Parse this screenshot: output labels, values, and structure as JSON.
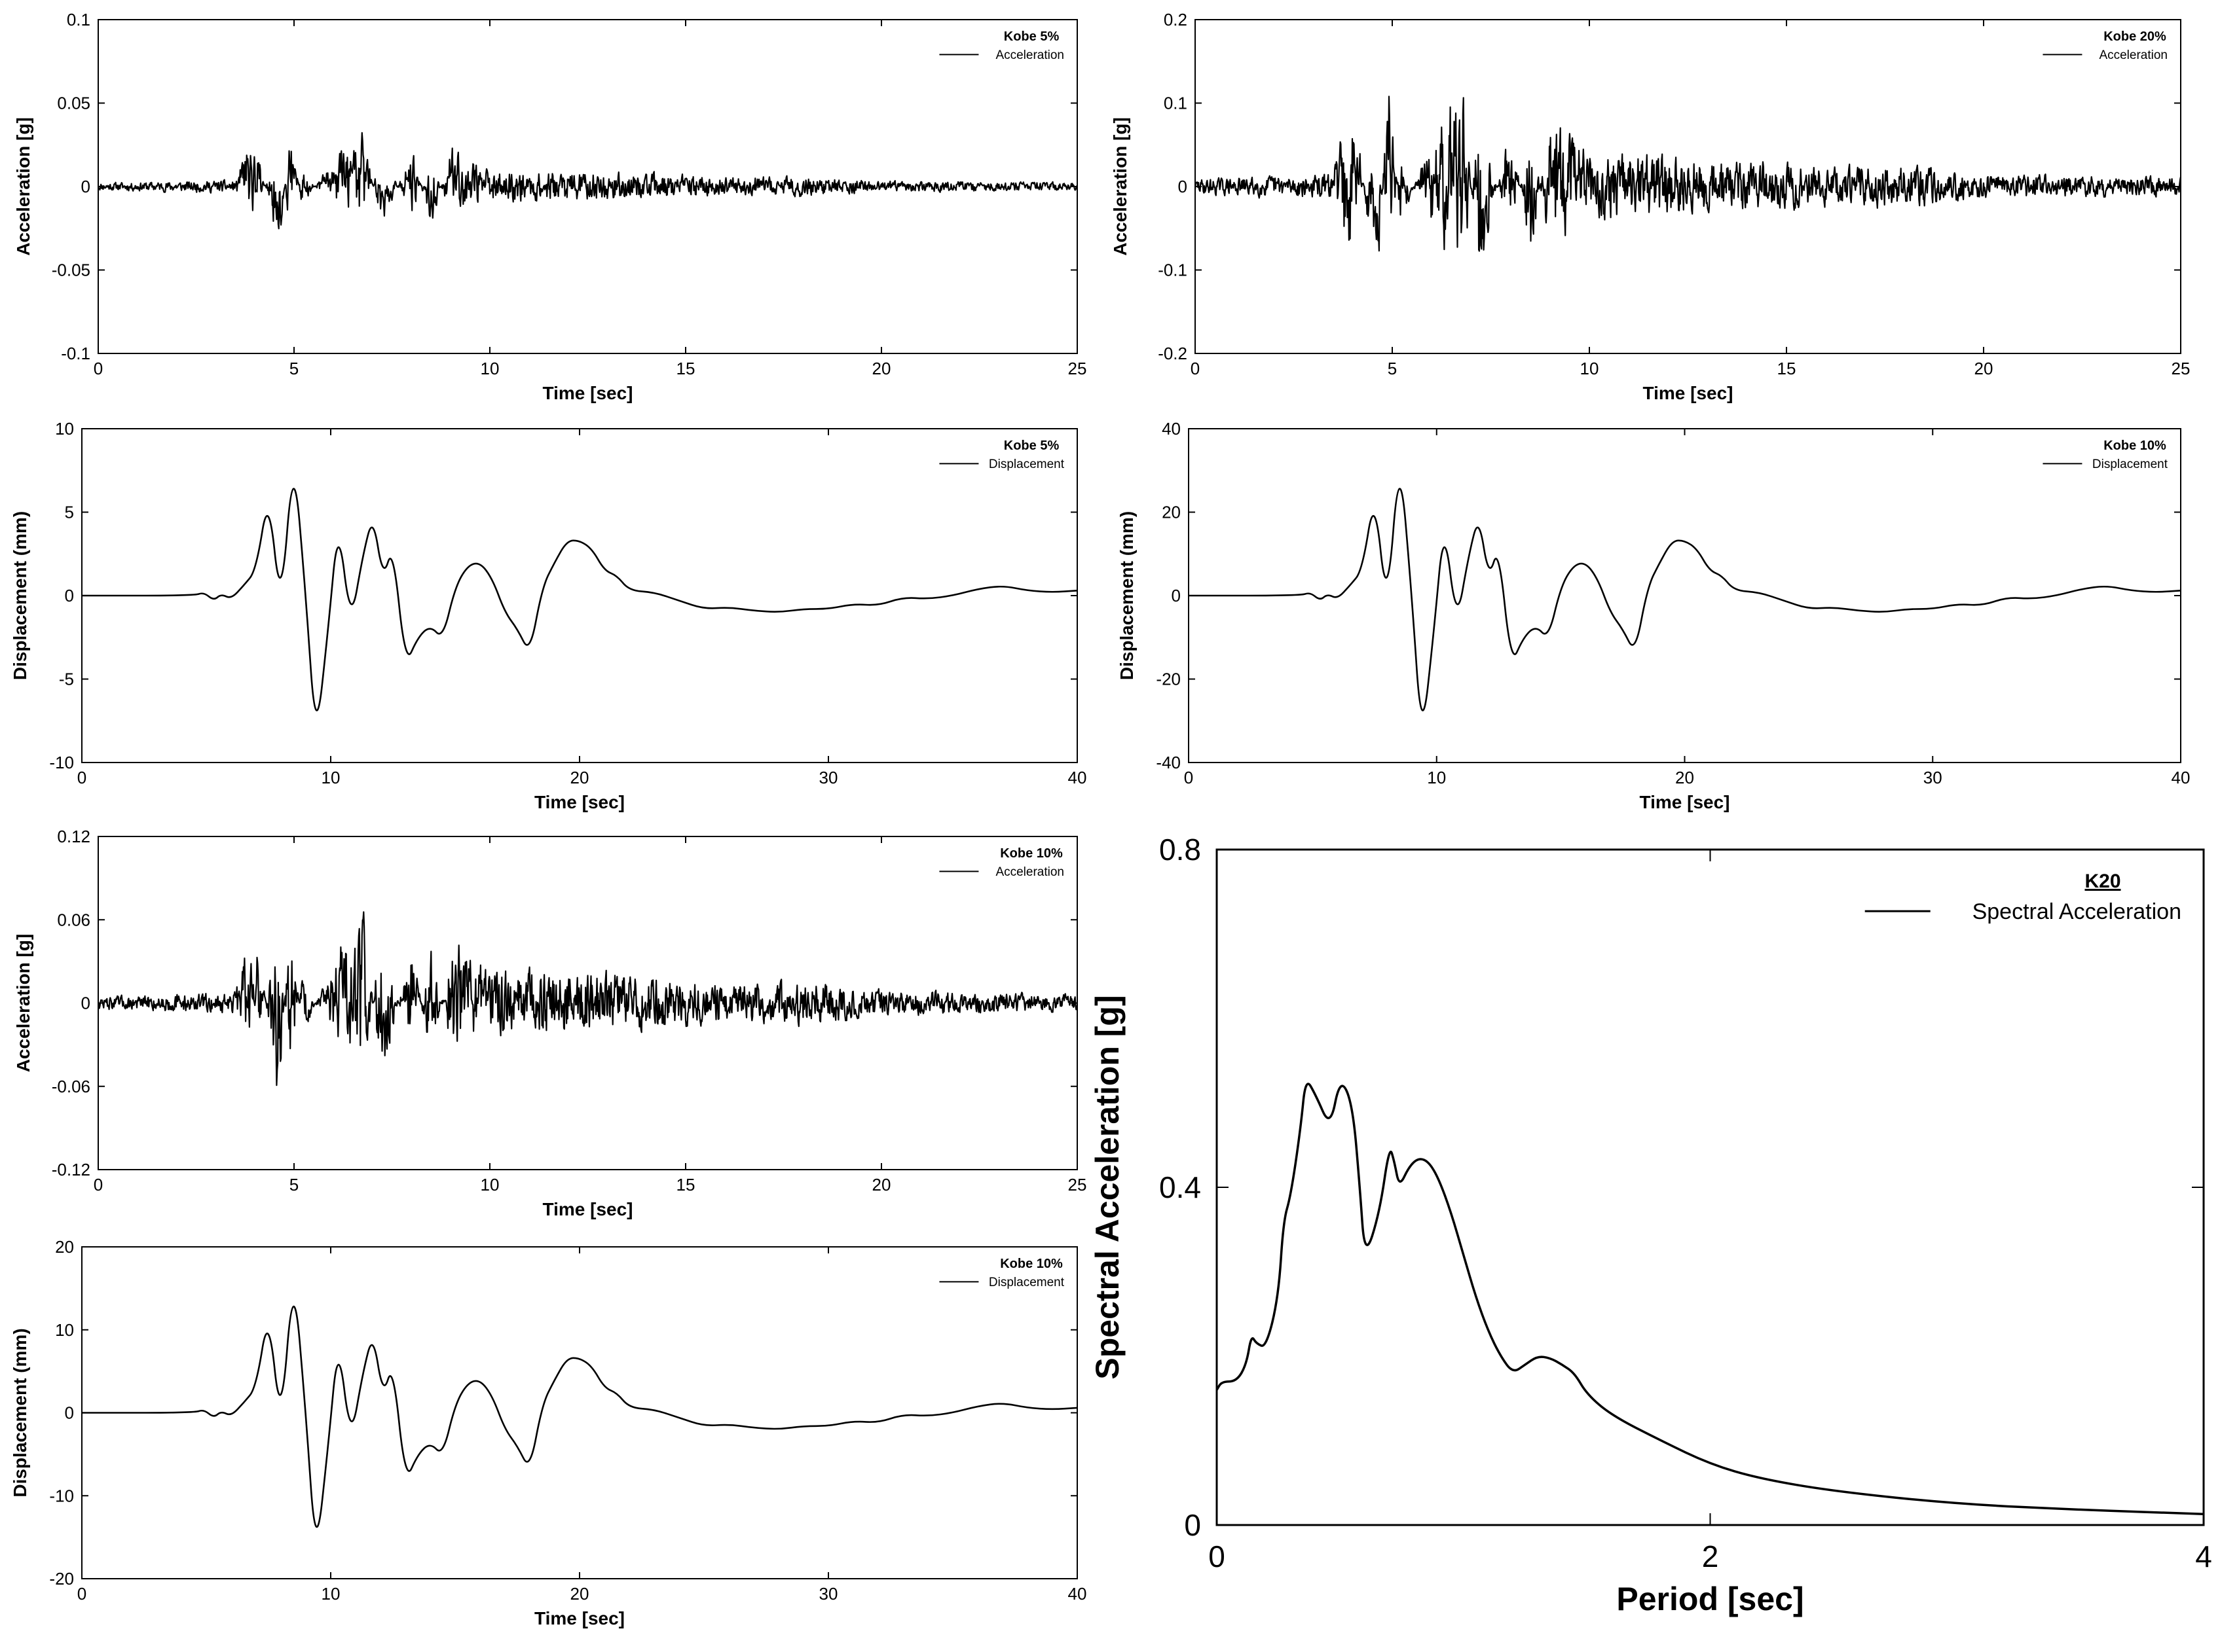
{
  "figure": {
    "background": "#ffffff",
    "line_color": "#000000"
  },
  "chart_data": [
    {
      "id": "kobe5-acc",
      "type": "line",
      "legend_title": "Kobe 5%",
      "xlabel": "Time [sec]",
      "ylabel": "Acceleration [g]",
      "xlim": [
        0,
        25
      ],
      "ylim": [
        -0.1,
        0.1
      ],
      "xticks": [
        0,
        5,
        10,
        15,
        20,
        25
      ],
      "yticks": [
        -0.1,
        -0.05,
        0,
        0.05,
        0.1
      ],
      "ytick_labels": [
        "-0.1",
        "-0.05",
        "0",
        "0.05",
        "0.1"
      ],
      "legend_position": "top-right",
      "grid": false,
      "series": [
        {
          "name": "Acceleration",
          "kind": "acceleration",
          "scale": 0.045,
          "seed": 11,
          "x": [
            0,
            3.5,
            3.8,
            4.1,
            4.6,
            4.9,
            5.2,
            6.0,
            6.8,
            7.2,
            8.0,
            8.5,
            9.0,
            10,
            12,
            14,
            16,
            18,
            20,
            22,
            25
          ],
          "y": [
            0.003,
            0.005,
            0.03,
            0.025,
            -0.046,
            0.043,
            -0.015,
            0.02,
            0.043,
            -0.035,
            0.028,
            -0.03,
            0.03,
            0.012,
            0.012,
            0.01,
            0.007,
            0.008,
            0.004,
            0.004,
            0.003
          ]
        }
      ]
    },
    {
      "id": "kobe20-acc",
      "type": "line",
      "legend_title": "Kobe 20%",
      "xlabel": "Time [sec]",
      "ylabel": "Acceleration [g]",
      "xlim": [
        0,
        25
      ],
      "ylim": [
        -0.2,
        0.2
      ],
      "xticks": [
        0,
        5,
        10,
        15,
        20,
        25
      ],
      "yticks": [
        -0.2,
        -0.1,
        0,
        0.1,
        0.2
      ],
      "ytick_labels": [
        "-0.2",
        "-0.1",
        "0",
        "0.1",
        "0.2"
      ],
      "legend_position": "top-right",
      "grid": false,
      "series": [
        {
          "name": "Acceleration",
          "kind": "acceleration",
          "scale": 0.18,
          "seed": 29,
          "x": [
            0,
            3.5,
            3.8,
            4.1,
            4.6,
            4.9,
            5.2,
            6.0,
            6.8,
            7.2,
            8.0,
            8.5,
            9.0,
            10,
            12,
            14,
            16,
            18,
            20,
            22,
            25
          ],
          "y": [
            0.012,
            0.02,
            0.13,
            0.1,
            -0.185,
            0.175,
            -0.06,
            0.08,
            0.175,
            -0.16,
            0.11,
            -0.12,
            0.12,
            0.05,
            0.05,
            0.04,
            0.03,
            0.035,
            0.02,
            0.018,
            0.014
          ]
        }
      ]
    },
    {
      "id": "kobe5-disp",
      "type": "line",
      "legend_title": "Kobe 5%",
      "xlabel": "Time [sec]",
      "ylabel": "Displacement (mm)",
      "xlim": [
        0,
        40
      ],
      "ylim": [
        -10,
        10
      ],
      "xticks": [
        0,
        10,
        20,
        30,
        40
      ],
      "yticks": [
        -10,
        -5,
        0,
        5,
        10
      ],
      "ytick_labels": [
        "-10",
        "-5",
        "0",
        "5",
        "10"
      ],
      "legend_position": "top-right",
      "grid": false,
      "series": [
        {
          "name": "Displacement",
          "kind": "displacement",
          "x": [
            0,
            4.5,
            4.9,
            5.3,
            5.6,
            6.0,
            6.5,
            7.0,
            7.5,
            8.0,
            8.5,
            9.0,
            9.4,
            9.9,
            10.3,
            10.8,
            11.3,
            11.7,
            12.1,
            12.5,
            13.0,
            13.5,
            14.0,
            14.5,
            15.0,
            15.5,
            16.0,
            16.5,
            17.0,
            17.5,
            18.0,
            18.5,
            19.0,
            19.5,
            20.0,
            20.5,
            21.0,
            21.5,
            22.0,
            23.0,
            24.0,
            25.0,
            26.0,
            27.0,
            28.0,
            29.0,
            30.0,
            31.0,
            32.0,
            33.0,
            34.0,
            35.0,
            36.0,
            37.0,
            38.0,
            39.0,
            40.0
          ],
          "y": [
            0,
            0,
            0.2,
            -0.3,
            0.1,
            -0.2,
            0.6,
            1.5,
            6.2,
            -1.0,
            8.7,
            0.0,
            -8.8,
            -2.0,
            4.5,
            -1.8,
            2.5,
            4.8,
            1.0,
            3.0,
            -4.2,
            -2.5,
            -1.8,
            -2.6,
            0.5,
            1.8,
            2.0,
            1.0,
            -1.0,
            -2.0,
            -3.5,
            0.5,
            2.0,
            3.3,
            3.3,
            2.8,
            1.5,
            1.2,
            0.3,
            0.2,
            -0.3,
            -0.8,
            -0.7,
            -0.9,
            -1.0,
            -0.8,
            -0.8,
            -0.5,
            -0.6,
            -0.1,
            -0.2,
            0.0,
            0.4,
            0.6,
            0.3,
            0.2,
            0.3
          ]
        }
      ]
    },
    {
      "id": "kobe10-disp-right",
      "type": "line",
      "legend_title": "Kobe 10%",
      "xlabel": "Time [sec]",
      "ylabel": "Displacement (mm)",
      "xlim": [
        0,
        40
      ],
      "ylim": [
        -40,
        40
      ],
      "xticks": [
        0,
        10,
        20,
        30,
        40
      ],
      "yticks": [
        -40,
        -20,
        0,
        20,
        40
      ],
      "ytick_labels": [
        "-40",
        "-20",
        "0",
        "20",
        "40"
      ],
      "legend_position": "top-right",
      "grid": false,
      "series": [
        {
          "name": "Displacement",
          "kind": "displacement",
          "x": [
            0,
            4.5,
            4.9,
            5.3,
            5.6,
            6.0,
            6.5,
            7.0,
            7.5,
            8.0,
            8.5,
            9.0,
            9.4,
            9.9,
            10.3,
            10.8,
            11.3,
            11.7,
            12.1,
            12.5,
            13.0,
            13.5,
            14.0,
            14.5,
            15.0,
            15.5,
            16.0,
            16.5,
            17.0,
            17.5,
            18.0,
            18.5,
            19.0,
            19.5,
            20.0,
            20.5,
            21.0,
            21.5,
            22.0,
            23.0,
            24.0,
            25.0,
            26.0,
            27.0,
            28.0,
            29.0,
            30.0,
            31.0,
            32.0,
            33.0,
            34.0,
            35.0,
            36.0,
            37.0,
            38.0,
            39.0,
            40.0
          ],
          "y": [
            0,
            0,
            0.8,
            -1.2,
            0.4,
            -0.8,
            2.4,
            6,
            24.8,
            -4,
            34.8,
            0,
            -35.2,
            -8,
            18,
            -7.2,
            10,
            19.2,
            4,
            12,
            -16.8,
            -10,
            -7.2,
            -10.4,
            2,
            7.2,
            8,
            4,
            -4,
            -8,
            -14,
            2,
            8,
            13.2,
            13.2,
            11.2,
            6,
            4.8,
            1.2,
            0.8,
            -1.2,
            -3.2,
            -2.8,
            -3.6,
            -4,
            -3.2,
            -3.2,
            -2,
            -2.4,
            -0.4,
            -0.8,
            0,
            1.6,
            2.4,
            1.2,
            0.8,
            1.2
          ]
        }
      ]
    },
    {
      "id": "kobe10-acc",
      "type": "line",
      "legend_title": "Kobe 10%",
      "xlabel": "Time [sec]",
      "ylabel": "Acceleration [g]",
      "xlim": [
        0,
        25
      ],
      "ylim": [
        -0.12,
        0.12
      ],
      "xticks": [
        0,
        5,
        10,
        15,
        20,
        25
      ],
      "yticks": [
        -0.12,
        -0.06,
        0,
        0.06,
        0.12
      ],
      "ytick_labels": [
        "-0.12",
        "-0.06",
        "0",
        "0.06",
        "0.12"
      ],
      "legend_position": "top-right",
      "grid": false,
      "series": [
        {
          "name": "Acceleration",
          "kind": "acceleration",
          "scale": 0.09,
          "seed": 47,
          "x": [
            0,
            3.5,
            3.8,
            4.1,
            4.6,
            4.9,
            5.2,
            6.0,
            6.8,
            7.2,
            8.0,
            8.5,
            9.0,
            10,
            12,
            14,
            16,
            18,
            20,
            22,
            25
          ],
          "y": [
            0.006,
            0.01,
            0.065,
            0.05,
            -0.092,
            0.088,
            -0.03,
            0.04,
            0.088,
            -0.078,
            0.055,
            -0.06,
            0.06,
            0.03,
            0.03,
            0.025,
            0.018,
            0.02,
            0.012,
            0.01,
            0.008
          ]
        }
      ]
    },
    {
      "id": "kobe10-disp-left",
      "type": "line",
      "legend_title": "Kobe 10%",
      "xlabel": "Time [sec]",
      "ylabel": "Displacement (mm)",
      "xlim": [
        0,
        40
      ],
      "ylim": [
        -20,
        20
      ],
      "xticks": [
        0,
        10,
        20,
        30,
        40
      ],
      "yticks": [
        -20,
        -10,
        0,
        10,
        20
      ],
      "ytick_labels": [
        "-20",
        "-10",
        "0",
        "10",
        "20"
      ],
      "legend_position": "top-right",
      "grid": false,
      "series": [
        {
          "name": "Displacement",
          "kind": "displacement",
          "x": [
            0,
            4.5,
            4.9,
            5.3,
            5.6,
            6.0,
            6.5,
            7.0,
            7.5,
            8.0,
            8.5,
            9.0,
            9.4,
            9.9,
            10.3,
            10.8,
            11.3,
            11.7,
            12.1,
            12.5,
            13.0,
            13.5,
            14.0,
            14.5,
            15.0,
            15.5,
            16.0,
            16.5,
            17.0,
            17.5,
            18.0,
            18.5,
            19.0,
            19.5,
            20.0,
            20.5,
            21.0,
            21.5,
            22.0,
            23.0,
            24.0,
            25.0,
            26.0,
            27.0,
            28.0,
            29.0,
            30.0,
            31.0,
            32.0,
            33.0,
            34.0,
            35.0,
            36.0,
            37.0,
            38.0,
            39.0,
            40.0
          ],
          "y": [
            0,
            0,
            0.4,
            -0.6,
            0.2,
            -0.4,
            1.2,
            3,
            12.4,
            -2,
            17.4,
            0,
            -17.6,
            -4,
            9,
            -3.6,
            5,
            9.6,
            2,
            6,
            -8.4,
            -5,
            -3.6,
            -5.2,
            1,
            3.6,
            4,
            2,
            -2,
            -4,
            -7,
            1,
            4,
            6.6,
            6.6,
            5.6,
            3,
            2.4,
            0.6,
            0.4,
            -0.6,
            -1.6,
            -1.4,
            -1.8,
            -2,
            -1.6,
            -1.6,
            -1,
            -1.2,
            -0.2,
            -0.4,
            0,
            0.8,
            1.2,
            0.6,
            0.4,
            0.6
          ]
        }
      ]
    },
    {
      "id": "k20-spectrum",
      "type": "line",
      "legend_title": "K20",
      "xlabel": "Period [sec]",
      "ylabel": "Spectral Acceleration [g]",
      "xlim": [
        0,
        4
      ],
      "ylim": [
        0,
        0.8
      ],
      "xticks": [
        0,
        2,
        4
      ],
      "yticks": [
        0,
        0.4,
        0.8
      ],
      "ytick_labels": [
        "0",
        "0.4",
        "0.8"
      ],
      "legend_position": "top-right",
      "grid": false,
      "series": [
        {
          "name": "Spectral Acceleration",
          "kind": "spectrum",
          "x": [
            0,
            0.02,
            0.08,
            0.12,
            0.14,
            0.16,
            0.2,
            0.25,
            0.27,
            0.3,
            0.34,
            0.36,
            0.4,
            0.46,
            0.5,
            0.55,
            0.58,
            0.6,
            0.66,
            0.7,
            0.72,
            0.74,
            0.78,
            0.82,
            0.86,
            0.9,
            0.95,
            1.0,
            1.05,
            1.1,
            1.15,
            1.2,
            1.25,
            1.3,
            1.35,
            1.4,
            1.45,
            1.5,
            1.6,
            1.8,
            2.0,
            2.2,
            2.5,
            3.0,
            3.5,
            4.0
          ],
          "y": [
            0.16,
            0.17,
            0.17,
            0.19,
            0.225,
            0.215,
            0.21,
            0.27,
            0.36,
            0.39,
            0.47,
            0.53,
            0.51,
            0.47,
            0.53,
            0.5,
            0.4,
            0.315,
            0.37,
            0.45,
            0.43,
            0.4,
            0.425,
            0.435,
            0.43,
            0.41,
            0.37,
            0.32,
            0.27,
            0.23,
            0.2,
            0.18,
            0.19,
            0.2,
            0.198,
            0.19,
            0.18,
            0.155,
            0.13,
            0.1,
            0.072,
            0.055,
            0.04,
            0.025,
            0.018,
            0.013
          ]
        }
      ]
    }
  ]
}
